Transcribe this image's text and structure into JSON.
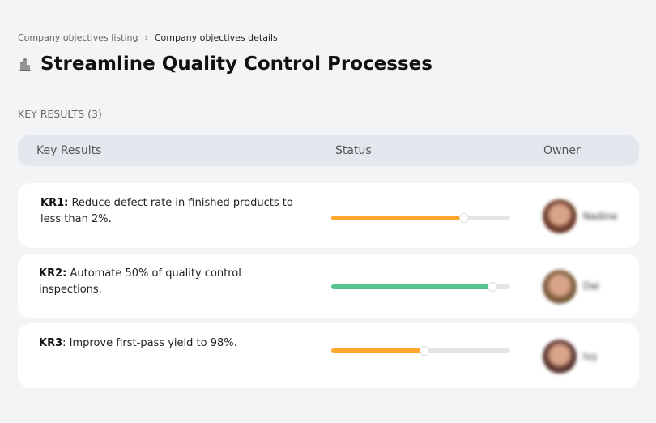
{
  "breadcrumb": {
    "parent": "Company objectives listing",
    "separator": "›",
    "current": "Company objectives details"
  },
  "title": "Streamline Quality Control Processes",
  "title_icon": "building-chart-icon",
  "section_label": "KEY RESULTS (3)",
  "columns": {
    "key_results": "Key Results",
    "status": "Status",
    "owner": "Owner"
  },
  "rows": [
    {
      "code": "KR1:",
      "text": " Reduce defect rate in finished products to less than 2%.",
      "progress": 74,
      "color": "#ffa630",
      "owner": "Nadine",
      "avatar": "#6b3a2a"
    },
    {
      "code": "KR2:",
      "text": " Automate 50% of quality control inspections.",
      "progress": 90,
      "color": "#55c590",
      "owner": "Dai",
      "avatar": "#7a5a3a"
    },
    {
      "code": "KR3",
      "text": ": Improve first-pass yield to 98%.",
      "progress": 52,
      "color": "#ffa630",
      "owner": "Ivy",
      "avatar": "#5a3530"
    }
  ]
}
